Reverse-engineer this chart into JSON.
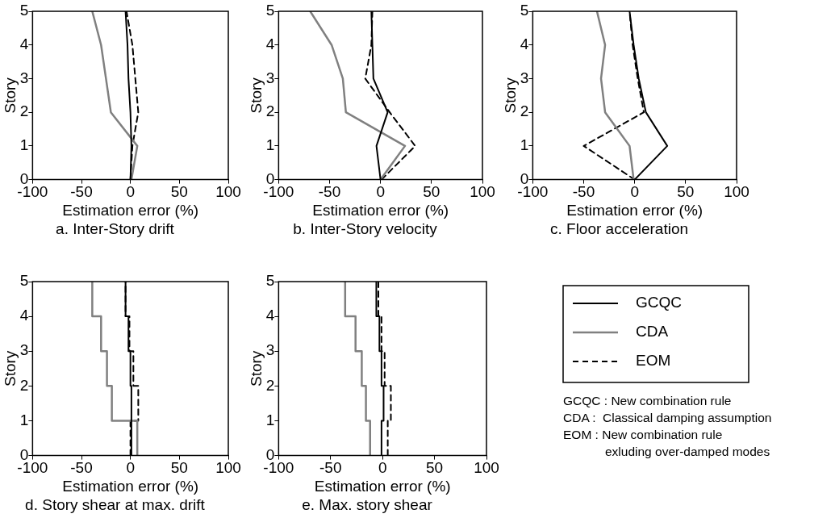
{
  "chart_data": [
    {
      "type": "line",
      "title": "a. Inter-Story drift",
      "xlabel": "Estimation error (%)",
      "ylabel": "Story",
      "xlim": [
        -100,
        100
      ],
      "xticks": [
        -100,
        -50,
        0,
        50,
        100
      ],
      "ylim": [
        0,
        5
      ],
      "yticks": [
        0,
        1,
        2,
        3,
        4,
        5
      ],
      "grid": false,
      "legend": false,
      "series": [
        {
          "color": "#000000",
          "x": [
            0,
            1,
            0,
            -2,
            -3,
            -5
          ],
          "values": [
            0,
            1,
            2,
            3,
            4,
            5
          ]
        },
        {
          "color": "#808080",
          "x": [
            1,
            7,
            -20,
            -25,
            -30,
            -39
          ],
          "values": [
            0,
            1,
            2,
            3,
            4,
            5
          ]
        },
        {
          "color": "#000000",
          "line_style": "dashed",
          "x": [
            0,
            2,
            8,
            5,
            2,
            -4
          ],
          "values": [
            0,
            1,
            2,
            3,
            4,
            5
          ]
        }
      ]
    },
    {
      "type": "line",
      "title": "b. Inter-Story velocity",
      "xlabel": "Estimation error (%)",
      "ylabel": "Story",
      "xlim": [
        -100,
        100
      ],
      "xticks": [
        -100,
        -50,
        0,
        50,
        100
      ],
      "ylim": [
        0,
        5
      ],
      "yticks": [
        0,
        1,
        2,
        3,
        4,
        5
      ],
      "grid": false,
      "legend": false,
      "series": [
        {
          "color": "#000000",
          "x": [
            0,
            -4,
            7,
            -7,
            -8,
            -9
          ],
          "values": [
            0,
            1,
            2,
            3,
            4,
            5
          ]
        },
        {
          "color": "#808080",
          "x": [
            0,
            24,
            -34,
            -37,
            -48,
            -69
          ],
          "values": [
            0,
            1,
            2,
            3,
            4,
            5
          ]
        },
        {
          "color": "#000000",
          "line_style": "dashed",
          "x": [
            1,
            34,
            9,
            -15,
            -9,
            -8
          ],
          "values": [
            0,
            1,
            2,
            3,
            4,
            5
          ]
        }
      ]
    },
    {
      "type": "line",
      "title": "c. Floor acceleration",
      "xlabel": "Estimation error (%)",
      "ylabel": "Story",
      "xlim": [
        -100,
        100
      ],
      "xticks": [
        -100,
        -50,
        0,
        50,
        100
      ],
      "ylim": [
        0,
        5
      ],
      "yticks": [
        0,
        1,
        2,
        3,
        4,
        5
      ],
      "grid": false,
      "legend": false,
      "series": [
        {
          "color": "#000000",
          "x": [
            0,
            32,
            11,
            4,
            -1,
            -5
          ],
          "values": [
            0,
            1,
            2,
            3,
            4,
            5
          ]
        },
        {
          "color": "#808080",
          "x": [
            -1,
            -5,
            -29,
            -33,
            -29,
            -37
          ],
          "values": [
            0,
            1,
            2,
            3,
            4,
            5
          ]
        },
        {
          "color": "#000000",
          "line_style": "dashed",
          "x": [
            0,
            -50,
            9,
            3,
            -2,
            -5
          ],
          "values": [
            0,
            1,
            2,
            3,
            4,
            5
          ]
        }
      ]
    },
    {
      "type": "line",
      "title": "d. Story shear at max. drift",
      "xlabel": "Estimation error (%)",
      "ylabel": "Story",
      "xlim": [
        -100,
        100
      ],
      "xticks": [
        -100,
        -50,
        0,
        50,
        100
      ],
      "ylim": [
        0,
        5
      ],
      "yticks": [
        0,
        1,
        2,
        3,
        4,
        5
      ],
      "grid": false,
      "legend": false,
      "series": [
        {
          "color": "#000000",
          "x": [
            1,
            1,
            1,
            1,
            0,
            0,
            -2,
            -2,
            -5,
            -5
          ],
          "values": [
            0,
            1,
            1,
            2,
            2,
            3,
            3,
            4,
            4,
            5
          ]
        },
        {
          "color": "#808080",
          "x": [
            7,
            7,
            -19,
            -19,
            -24,
            -24,
            -30,
            -30,
            -39,
            -39
          ],
          "values": [
            0,
            1,
            1,
            2,
            2,
            3,
            3,
            4,
            4,
            5
          ]
        },
        {
          "color": "#000000",
          "line_style": "dashed",
          "x": [
            0,
            0,
            8,
            8,
            3,
            3,
            -1,
            -1,
            -5,
            -5
          ],
          "values": [
            0,
            1,
            1,
            2,
            2,
            3,
            3,
            4,
            4,
            5
          ]
        }
      ]
    },
    {
      "type": "line",
      "title": "e. Max. story shear",
      "xlabel": "Estimation error (%)",
      "ylabel": "Story",
      "xlim": [
        -100,
        100
      ],
      "xticks": [
        -100,
        -50,
        0,
        50,
        100
      ],
      "ylim": [
        0,
        5
      ],
      "yticks": [
        0,
        1,
        2,
        3,
        4,
        5
      ],
      "grid": false,
      "legend": "right",
      "annotations": [
        "GCQC : New combination rule",
        "CDA :  Classical damping assumption",
        "EOM : New combination rule",
        "exluding over-damped modes"
      ],
      "series": [
        {
          "name": "GCQC",
          "color": "#000000",
          "x": [
            -1,
            -1,
            1,
            1,
            -1,
            -1,
            -3,
            -3,
            -6,
            -6
          ],
          "values": [
            0,
            1,
            1,
            2,
            2,
            3,
            3,
            4,
            4,
            5
          ]
        },
        {
          "name": "CDA",
          "color": "#808080",
          "x": [
            -12,
            -12,
            -16,
            -16,
            -20,
            -20,
            -26,
            -26,
            -36,
            -36
          ],
          "values": [
            0,
            1,
            1,
            2,
            2,
            3,
            3,
            4,
            4,
            5
          ]
        },
        {
          "name": "EOM",
          "color": "#000000",
          "line_style": "dashed",
          "x": [
            5,
            5,
            8,
            8,
            2,
            2,
            -1,
            -1,
            -4,
            -4
          ],
          "values": [
            0,
            1,
            1,
            2,
            2,
            3,
            3,
            4,
            4,
            5
          ]
        }
      ]
    }
  ]
}
